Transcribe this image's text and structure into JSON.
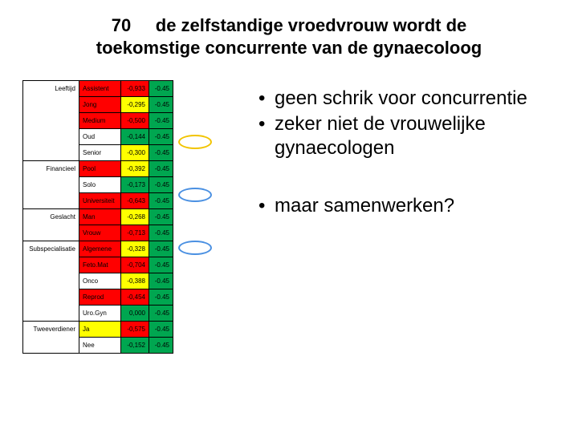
{
  "title_number": "70",
  "title_text_line1": "de zelfstandige vroedvrouw wordt de",
  "title_text_line2": "toekomstige concurrente van de gynaecoloog",
  "title_fontsize": 22,
  "colors": {
    "red": "#ff0000",
    "yellow": "#ffff00",
    "green": "#00a650",
    "white": "#ffffff",
    "oval_yellow": "#f2c400",
    "oval_blue": "#4a90e2",
    "text": "#000000"
  },
  "table": {
    "font_size": 8,
    "rows": [
      {
        "category": "Leeftijd",
        "label": "Assistent",
        "v1": "-0,933",
        "v2": "-0.45",
        "lbl_color": "red",
        "v1_color": "red",
        "v2_color": "green"
      },
      {
        "category": "",
        "label": "Jong",
        "v1": "-0,295",
        "v2": "-0.45",
        "lbl_color": "red",
        "v1_color": "yellow",
        "v2_color": "green"
      },
      {
        "category": "",
        "label": "Medium",
        "v1": "-0,500",
        "v2": "-0.45",
        "lbl_color": "red",
        "v1_color": "red",
        "v2_color": "green"
      },
      {
        "category": "",
        "label": "Oud",
        "v1": "-0,144",
        "v2": "-0.45",
        "lbl_color": "white",
        "v1_color": "green",
        "v2_color": "green",
        "oval": "yellow"
      },
      {
        "category": "",
        "label": "Senior",
        "v1": "-0,300",
        "v2": "-0.45",
        "lbl_color": "white",
        "v1_color": "yellow",
        "v2_color": "green"
      },
      {
        "category": "Financieel",
        "label": "Pool",
        "v1": "-0,392",
        "v2": "-0.45",
        "lbl_color": "red",
        "v1_color": "yellow",
        "v2_color": "green"
      },
      {
        "category": "",
        "label": "Solo",
        "v1": "-0,173",
        "v2": "-0.45",
        "lbl_color": "white",
        "v1_color": "green",
        "v2_color": "green",
        "oval": "blue"
      },
      {
        "category": "",
        "label": "Universiteit",
        "v1": "-0,643",
        "v2": "-0.45",
        "lbl_color": "red",
        "v1_color": "red",
        "v2_color": "green"
      },
      {
        "category": "Geslacht",
        "label": "Man",
        "v1": "-0,268",
        "v2": "-0.45",
        "lbl_color": "red",
        "v1_color": "yellow",
        "v2_color": "green"
      },
      {
        "category": "",
        "label": "Vrouw",
        "v1": "-0,713",
        "v2": "-0.45",
        "lbl_color": "red",
        "v1_color": "red",
        "v2_color": "green",
        "oval": "blue"
      },
      {
        "category": "Subspecialisatie",
        "label": "Algemene",
        "v1": "-0,328",
        "v2": "-0.45",
        "lbl_color": "red",
        "v1_color": "yellow",
        "v2_color": "green"
      },
      {
        "category": "",
        "label": "Feto.Mat",
        "v1": "-0,704",
        "v2": "-0.45",
        "lbl_color": "red",
        "v1_color": "red",
        "v2_color": "green"
      },
      {
        "category": "",
        "label": "Onco",
        "v1": "-0,388",
        "v2": "-0.45",
        "lbl_color": "white",
        "v1_color": "yellow",
        "v2_color": "green"
      },
      {
        "category": "",
        "label": "Reprod",
        "v1": "-0,454",
        "v2": "-0.45",
        "lbl_color": "red",
        "v1_color": "red",
        "v2_color": "green"
      },
      {
        "category": "",
        "label": "Uro.Gyn",
        "v1": "0,000",
        "v2": "-0.45",
        "lbl_color": "white",
        "v1_color": "green",
        "v2_color": "green"
      },
      {
        "category": "Tweeverdiener",
        "label": "Ja",
        "v1": "-0,575",
        "v2": "-0.45",
        "lbl_color": "yellow",
        "v1_color": "red",
        "v2_color": "green"
      },
      {
        "category": "",
        "label": "Nee",
        "v1": "-0,152",
        "v2": "-0.45",
        "lbl_color": "white",
        "v1_color": "green",
        "v2_color": "green"
      }
    ]
  },
  "bullets": {
    "fontsize": 24,
    "group1": [
      "geen schrik voor concurrentie",
      "zeker niet de vrouwelijke gynaecologen"
    ],
    "group2": [
      "maar samenwerken?"
    ]
  },
  "oval_shapes": [
    {
      "row": 3,
      "color_key": "oval_yellow",
      "w": 42,
      "h": 18
    },
    {
      "row": 6,
      "color_key": "oval_blue",
      "w": 42,
      "h": 18
    },
    {
      "row": 9,
      "color_key": "oval_blue",
      "w": 42,
      "h": 18
    }
  ]
}
